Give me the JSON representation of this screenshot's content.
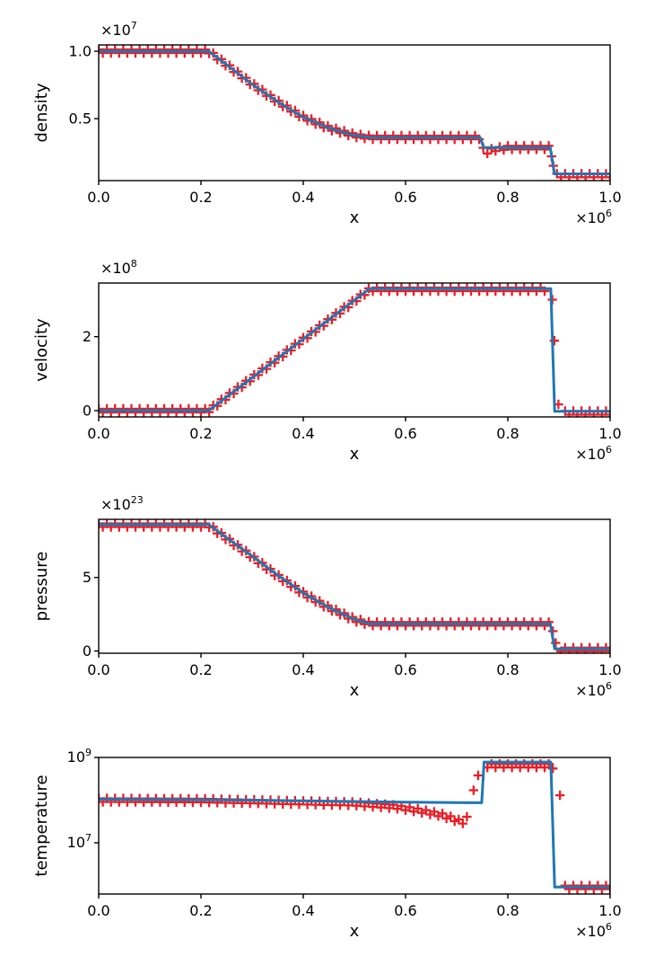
{
  "figure": {
    "background_color": "#ffffff",
    "text_color": "#000000",
    "axis_color": "#000000",
    "line_color": "#1f77b4",
    "marker_color": "#ed1c24",
    "xlabel": "x",
    "x_offset_label": {
      "prefix": "×10",
      "exp": "6"
    },
    "xticks": [
      {
        "v": 0.0,
        "label": "0.0"
      },
      {
        "v": 0.2,
        "label": "0.2"
      },
      {
        "v": 0.4,
        "label": "0.4"
      },
      {
        "v": 0.6,
        "label": "0.6"
      },
      {
        "v": 0.8,
        "label": "0.8"
      },
      {
        "v": 1.0,
        "label": "1.0"
      }
    ],
    "x_unit_note": "x values in units of 10^6"
  },
  "chart_data": [
    {
      "type": "line",
      "ylabel": "density",
      "yscale": "linear",
      "y_offset_label": {
        "prefix": "×10",
        "exp": "7"
      },
      "xlim": [
        0,
        1
      ],
      "ylim": [
        0.04,
        1.047
      ],
      "yticks": [
        {
          "v": 0.5,
          "label": "0.5"
        },
        {
          "v": 1.0,
          "label": "1.0"
        }
      ],
      "line_points": [
        [
          0,
          1.0
        ],
        [
          0.215,
          1.0
        ],
        [
          0.25,
          0.9
        ],
        [
          0.3,
          0.755
        ],
        [
          0.35,
          0.625
        ],
        [
          0.4,
          0.51
        ],
        [
          0.45,
          0.43
        ],
        [
          0.5,
          0.375
        ],
        [
          0.532,
          0.36
        ],
        [
          0.746,
          0.36
        ],
        [
          0.753,
          0.285
        ],
        [
          0.883,
          0.285
        ],
        [
          0.891,
          0.09
        ],
        [
          1,
          0.09
        ]
      ],
      "marker_centerline": [
        [
          0,
          1.0
        ],
        [
          0.215,
          1.0
        ],
        [
          0.25,
          0.9
        ],
        [
          0.3,
          0.755
        ],
        [
          0.35,
          0.625
        ],
        [
          0.4,
          0.51
        ],
        [
          0.45,
          0.43
        ],
        [
          0.5,
          0.375
        ],
        [
          0.532,
          0.36
        ],
        [
          0.744,
          0.36
        ],
        [
          0.754,
          0.248
        ],
        [
          0.775,
          0.272
        ],
        [
          0.8,
          0.285
        ],
        [
          0.883,
          0.285
        ],
        [
          0.895,
          0.078
        ],
        [
          1,
          0.078
        ]
      ],
      "marker_gaps": [
        [
          0.883,
          0.894
        ]
      ],
      "marker_outliers": [
        [
          0.8855,
          0.22
        ],
        [
          0.889,
          0.15
        ]
      ]
    },
    {
      "type": "line",
      "ylabel": "velocity",
      "yscale": "linear",
      "y_offset_label": {
        "prefix": "×10",
        "exp": "8"
      },
      "xlim": [
        0,
        1
      ],
      "ylim": [
        -0.17,
        3.45
      ],
      "yticks": [
        {
          "v": 0,
          "label": "0"
        },
        {
          "v": 2,
          "label": "2"
        }
      ],
      "line_points": [
        [
          0,
          0
        ],
        [
          0.215,
          0
        ],
        [
          0.53,
          3.3
        ],
        [
          0.884,
          3.3
        ],
        [
          0.8915,
          -0.02
        ],
        [
          1,
          -0.02
        ]
      ],
      "marker_centerline": [
        [
          0,
          0
        ],
        [
          0.215,
          0
        ],
        [
          0.53,
          3.28
        ],
        [
          0.877,
          3.28
        ],
        [
          0.905,
          -0.06
        ],
        [
          1,
          -0.06
        ]
      ],
      "marker_gaps": [
        [
          0.877,
          0.9045
        ]
      ],
      "marker_outliers": [
        [
          0.887,
          3.0
        ],
        [
          0.891,
          1.89
        ],
        [
          0.899,
          0.17
        ]
      ]
    },
    {
      "type": "line",
      "ylabel": "pressure",
      "yscale": "linear",
      "y_offset_label": {
        "prefix": "×10",
        "exp": "23"
      },
      "xlim": [
        0,
        1
      ],
      "ylim": [
        -0.15,
        8.95
      ],
      "yticks": [
        {
          "v": 0,
          "label": "0"
        },
        {
          "v": 5,
          "label": "5"
        }
      ],
      "line_points": [
        [
          0,
          8.6
        ],
        [
          0.215,
          8.6
        ],
        [
          0.25,
          7.7
        ],
        [
          0.3,
          6.45
        ],
        [
          0.35,
          5.15
        ],
        [
          0.4,
          3.95
        ],
        [
          0.45,
          2.95
        ],
        [
          0.5,
          2.15
        ],
        [
          0.53,
          1.85
        ],
        [
          0.883,
          1.85
        ],
        [
          0.8915,
          0.15
        ],
        [
          1,
          0.15
        ]
      ],
      "marker_centerline": [
        [
          0,
          8.55
        ],
        [
          0.215,
          8.55
        ],
        [
          0.25,
          7.65
        ],
        [
          0.3,
          6.4
        ],
        [
          0.35,
          5.1
        ],
        [
          0.4,
          3.92
        ],
        [
          0.45,
          2.93
        ],
        [
          0.5,
          2.13
        ],
        [
          0.53,
          1.85
        ],
        [
          0.883,
          1.85
        ],
        [
          0.898,
          0.105
        ],
        [
          1,
          0.105
        ]
      ],
      "marker_gaps": [
        [
          0.883,
          0.897
        ]
      ],
      "marker_outliers": [
        [
          0.888,
          1.35
        ],
        [
          0.8935,
          0.55
        ]
      ]
    },
    {
      "type": "line",
      "ylabel": "temperature",
      "yscale": "log",
      "xlim": [
        0,
        1
      ],
      "ylim": [
        630000,
        1000000000
      ],
      "yticks": [
        {
          "v": 1000000000,
          "sup_label": {
            "prefix": "10",
            "exp": "9"
          }
        },
        {
          "v": 10000000,
          "sup_label": {
            "prefix": "10",
            "exp": "7"
          }
        }
      ],
      "line_points": [
        [
          0,
          105000000.0
        ],
        [
          0.2,
          102000000.0
        ],
        [
          0.4,
          96000000.0
        ],
        [
          0.6,
          90000000.0
        ],
        [
          0.73,
          87000000.0
        ],
        [
          0.749,
          87000000.0
        ],
        [
          0.7535,
          780000000.0
        ],
        [
          0.884,
          780000000.0
        ],
        [
          0.8915,
          920000.0
        ],
        [
          1,
          920000.0
        ]
      ],
      "marker_centerline": [
        [
          0,
          100000000.0
        ],
        [
          0.2,
          98000000.0
        ],
        [
          0.35,
          90000000.0
        ],
        [
          0.5,
          82000000.0
        ],
        [
          0.58,
          70000000.0
        ],
        [
          0.63,
          56000000.0
        ],
        [
          0.67,
          45000000.0
        ],
        [
          0.7,
          34000000.0
        ],
        [
          0.709,
          30000000.0
        ],
        [
          0.717,
          33000000.0
        ],
        [
          0.724,
          43000000.0
        ],
        [
          0.757,
          640000000.0
        ],
        [
          0.884,
          640000000.0
        ],
        [
          0.908,
          900000.0
        ],
        [
          1,
          900000.0
        ]
      ],
      "marker_gaps": [
        [
          0.7245,
          0.756
        ],
        [
          0.884,
          0.9075
        ]
      ],
      "marker_outliers": [
        [
          0.733,
          170000000.0
        ],
        [
          0.742,
          380000000.0
        ],
        [
          0.888,
          550000000.0
        ],
        [
          0.902,
          130000000.0
        ]
      ]
    }
  ]
}
